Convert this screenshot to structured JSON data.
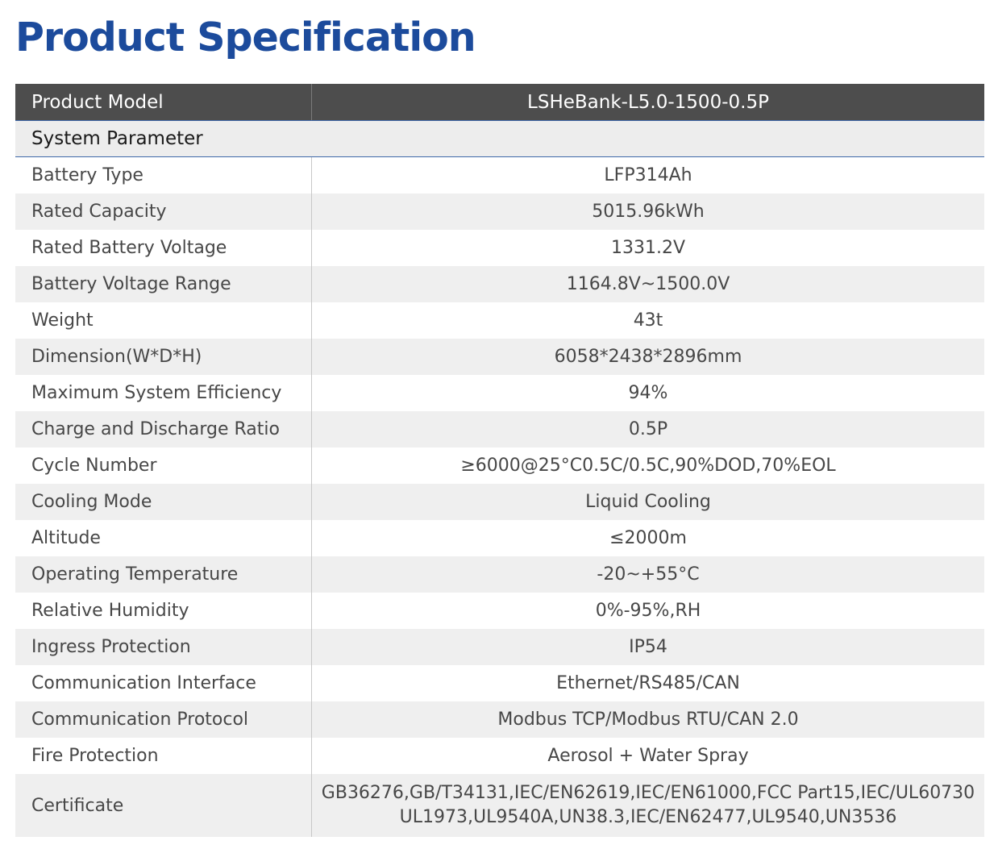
{
  "page": {
    "title": "Product Specification"
  },
  "table": {
    "header": {
      "label": "Product Model",
      "value": "LSHeBank-L5.0-1500-0.5P"
    },
    "section": "System Parameter",
    "rows": [
      {
        "label": "Battery Type",
        "value": "LFP314Ah"
      },
      {
        "label": "Rated Capacity",
        "value": "5015.96kWh"
      },
      {
        "label": "Rated Battery Voltage",
        "value": "1331.2V"
      },
      {
        "label": "Battery Voltage Range",
        "value": "1164.8V~1500.0V"
      },
      {
        "label": "Weight",
        "value": "43t"
      },
      {
        "label": "Dimension(W*D*H)",
        "value": "6058*2438*2896mm"
      },
      {
        "label": "Maximum System Efficiency",
        "value": "94%"
      },
      {
        "label": "Charge and Discharge Ratio",
        "value": "0.5P"
      },
      {
        "label": "Cycle Number",
        "value": "≥6000@25°C0.5C/0.5C,90%DOD,70%EOL"
      },
      {
        "label": "Cooling Mode",
        "value": "Liquid Cooling"
      },
      {
        "label": "Altitude",
        "value": "≤2000m"
      },
      {
        "label": "Operating Temperature",
        "value": "-20~+55°C"
      },
      {
        "label": "Relative Humidity",
        "value": "0%-95%,RH"
      },
      {
        "label": "Ingress Protection",
        "value": "IP54"
      },
      {
        "label": "Communication Interface",
        "value": "Ethernet/RS485/CAN"
      },
      {
        "label": "Communication Protocol",
        "value": "Modbus TCP/Modbus RTU/CAN 2.0"
      },
      {
        "label": "Fire Protection",
        "value": "Aerosol + Water Spray"
      }
    ],
    "certificate": {
      "label": "Certificate",
      "line1": "GB36276,GB/T34131,IEC/EN62619,IEC/EN61000,FCC Part15,IEC/UL60730",
      "line2": "UL1973,UL9540A,UN38.3,IEC/EN62477,UL9540,UN3536"
    }
  }
}
